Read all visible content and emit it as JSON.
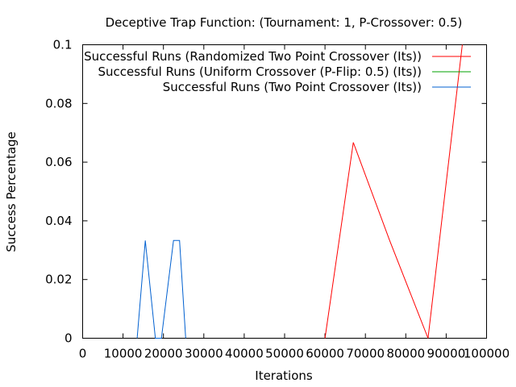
{
  "chart_data": {
    "type": "line",
    "title": "Deceptive Trap Function:  (Tournament: 1, P-Crossover: 0.5)",
    "xlabel": "Iterations",
    "ylabel": "Success Percentage",
    "xlim": [
      0,
      100000
    ],
    "ylim": [
      0,
      0.1
    ],
    "xticks": [
      0,
      10000,
      20000,
      30000,
      40000,
      50000,
      60000,
      70000,
      80000,
      90000,
      100000
    ],
    "xtick_labels": [
      "0",
      "10000",
      "20000",
      "30000",
      "40000",
      "50000",
      "60000",
      "70000",
      "80000",
      "90000",
      "100000"
    ],
    "yticks": [
      0,
      0.02,
      0.04,
      0.06,
      0.08,
      0.1
    ],
    "ytick_labels": [
      "0",
      "0.02",
      "0.04",
      "0.06",
      "0.08",
      "0.1"
    ],
    "grid": false,
    "legend_position": "top-right",
    "series": [
      {
        "name": "Successful Runs (Randomized Two Point Crossover (Its))",
        "color": "#ff0000",
        "points": [
          [
            60000,
            0
          ],
          [
            67000,
            0.0667
          ],
          [
            76000,
            0.0333
          ],
          [
            85500,
            0
          ],
          [
            94000,
            0.1
          ]
        ]
      },
      {
        "name": "Successful Runs (Uniform Crossover (P-Flip: 0.5) (Its))",
        "color": "#00a000",
        "points": []
      },
      {
        "name": "Successful Runs (Two Point Crossover (Its))",
        "color": "#0060d0",
        "points": [
          [
            13500,
            0
          ],
          [
            15500,
            0.0333
          ],
          [
            18000,
            0
          ],
          [
            19500,
            0
          ],
          [
            22500,
            0.0333
          ],
          [
            24000,
            0.0333
          ],
          [
            25500,
            0
          ]
        ]
      }
    ]
  }
}
